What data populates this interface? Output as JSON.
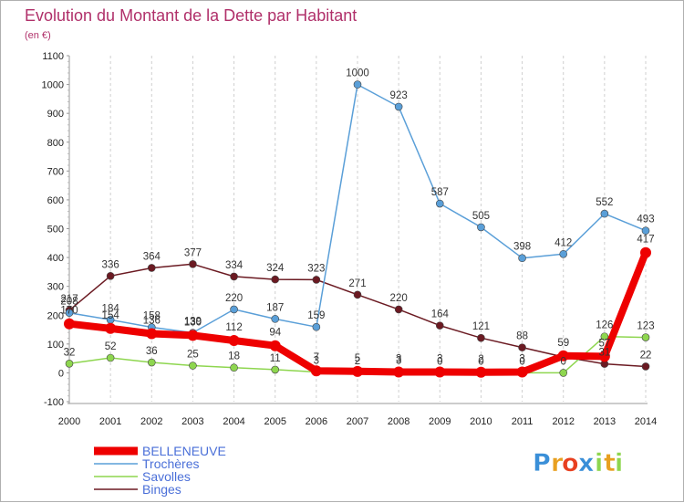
{
  "chart_data": {
    "type": "line",
    "title": "Evolution du Montant de la Dette par Habitant",
    "subtitle": "(en €)",
    "xlabel": "",
    "ylabel": "",
    "x": [
      "2000",
      "2001",
      "2002",
      "2003",
      "2004",
      "2005",
      "2006",
      "2007",
      "2008",
      "2009",
      "2010",
      "2011",
      "2012",
      "2013",
      "2014"
    ],
    "ylim": [
      -100,
      1100
    ],
    "yticks": [
      -100,
      0,
      100,
      200,
      300,
      400,
      500,
      600,
      700,
      800,
      900,
      1000,
      1100
    ],
    "ytick_labels": [
      "-100",
      "0",
      "100",
      "200",
      "300",
      "400",
      "500",
      "600",
      "700",
      "800",
      "900",
      "1000",
      "1100"
    ],
    "grid": "vertical",
    "legend_position": "bottom-left",
    "series": [
      {
        "key": "binges",
        "name": "Binges",
        "color": "#6b1a22",
        "width": 1.5,
        "marker": 4,
        "values": [
          217,
          336,
          364,
          377,
          334,
          324,
          323,
          271,
          220,
          164,
          121,
          88,
          55,
          31,
          22
        ],
        "labels": [
          "217",
          "336",
          "364",
          "377",
          "334",
          "324",
          "323",
          "271",
          "220",
          "164",
          "121",
          "88",
          "",
          "31",
          "22"
        ],
        "label_side": [
          "up",
          "up",
          "up",
          "up",
          "up",
          "up",
          "up",
          "up",
          "up",
          "up",
          "up",
          "up",
          "up",
          "up",
          "up"
        ]
      },
      {
        "key": "savolles",
        "name": "Savolles",
        "color": "#8ed64f",
        "width": 1.5,
        "marker": 4,
        "values": [
          32,
          52,
          36,
          25,
          18,
          11,
          3,
          2,
          3,
          0,
          0,
          0,
          0,
          126,
          123
        ],
        "labels": [
          "32",
          "52",
          "36",
          "25",
          "18",
          "11",
          "3",
          "2",
          "3",
          "0",
          "0",
          "0",
          "0",
          "126",
          "123"
        ],
        "label_side": [
          "up",
          "up",
          "up",
          "up",
          "up",
          "up",
          "up",
          "up",
          "up",
          "up",
          "up",
          "up",
          "up",
          "up",
          "up"
        ]
      },
      {
        "key": "trocheres",
        "name": "Trochères",
        "color": "#5a9fd8",
        "width": 1.5,
        "marker": 4,
        "values": [
          208,
          184,
          158,
          139,
          220,
          187,
          159,
          1000,
          923,
          587,
          505,
          398,
          412,
          552,
          493
        ],
        "labels": [
          "208",
          "184",
          "158",
          "139",
          "220",
          "187",
          "159",
          "1000",
          "923",
          "587",
          "505",
          "398",
          "412",
          "552",
          "493"
        ],
        "label_side": [
          "up",
          "up",
          "up",
          "up",
          "up",
          "up",
          "up",
          "up",
          "up",
          "up",
          "up",
          "up",
          "up",
          "up",
          "up"
        ]
      },
      {
        "key": "belleneuve",
        "name": "BELLENEUVE",
        "color": "#ee0000",
        "width": 8,
        "marker": 6,
        "values": [
          170,
          154,
          136,
          130,
          112,
          94,
          7,
          5,
          3,
          3,
          2,
          3,
          59,
          57,
          417
        ],
        "labels": [
          "170",
          "154",
          "136",
          "130",
          "112",
          "94",
          "7",
          "5",
          "3",
          "3",
          "2",
          "3",
          "59",
          "57",
          "417"
        ],
        "label_side": [
          "up",
          "up",
          "up",
          "up",
          "up",
          "up",
          "up",
          "up",
          "up",
          "up",
          "up",
          "up",
          "up",
          "up",
          "up"
        ]
      }
    ],
    "legend": [
      {
        "key": "belleneuve",
        "name": "BELLENEUVE",
        "color": "#ee0000",
        "text_color": "#4a6fd8",
        "thick": true
      },
      {
        "key": "trocheres",
        "name": "Trochères",
        "color": "#5a9fd8",
        "text_color": "#4a6fd8",
        "thick": false
      },
      {
        "key": "savolles",
        "name": "Savolles",
        "color": "#8ed64f",
        "text_color": "#4a6fd8",
        "thick": false
      },
      {
        "key": "binges",
        "name": "Binges",
        "color": "#6b1a22",
        "text_color": "#4a6fd8",
        "thick": false
      }
    ]
  },
  "logo": {
    "letters": [
      "P",
      "r",
      "o",
      "x",
      "i",
      "t",
      "i"
    ],
    "colors": [
      "#3a8fd8",
      "#e8a020",
      "#e84020",
      "#3a8fd8",
      "#8ed64f",
      "#e8a020",
      "#8ed64f"
    ]
  }
}
